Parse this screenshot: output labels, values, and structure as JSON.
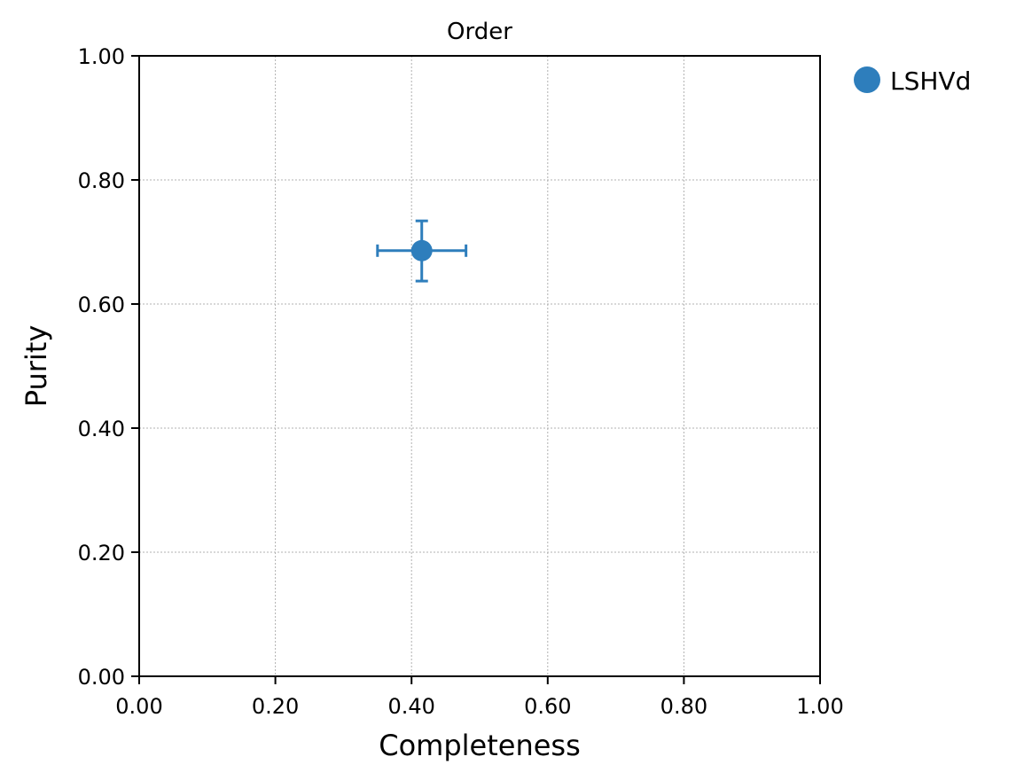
{
  "chart_data": {
    "type": "scatter",
    "title": "Order",
    "xlabel": "Completeness",
    "ylabel": "Purity",
    "xlim": [
      0.0,
      1.0
    ],
    "ylim": [
      0.0,
      1.0
    ],
    "xticks": [
      0.0,
      0.2,
      0.4,
      0.6,
      0.8,
      1.0
    ],
    "yticks": [
      0.0,
      0.2,
      0.4,
      0.6,
      0.8,
      1.0
    ],
    "xtick_labels": [
      "0.00",
      "0.20",
      "0.40",
      "0.60",
      "0.80",
      "1.00"
    ],
    "ytick_labels": [
      "0.00",
      "0.20",
      "0.40",
      "0.60",
      "0.80",
      "1.00"
    ],
    "grid": true,
    "legend_position": "outside top-right",
    "series": [
      {
        "name": "LSHVd",
        "color": "#2e7ebc",
        "points": [
          {
            "x": 0.415,
            "y": 0.686,
            "x_err": [
              0.35,
              0.48
            ],
            "y_err": [
              0.637,
              0.734
            ]
          }
        ]
      }
    ]
  }
}
